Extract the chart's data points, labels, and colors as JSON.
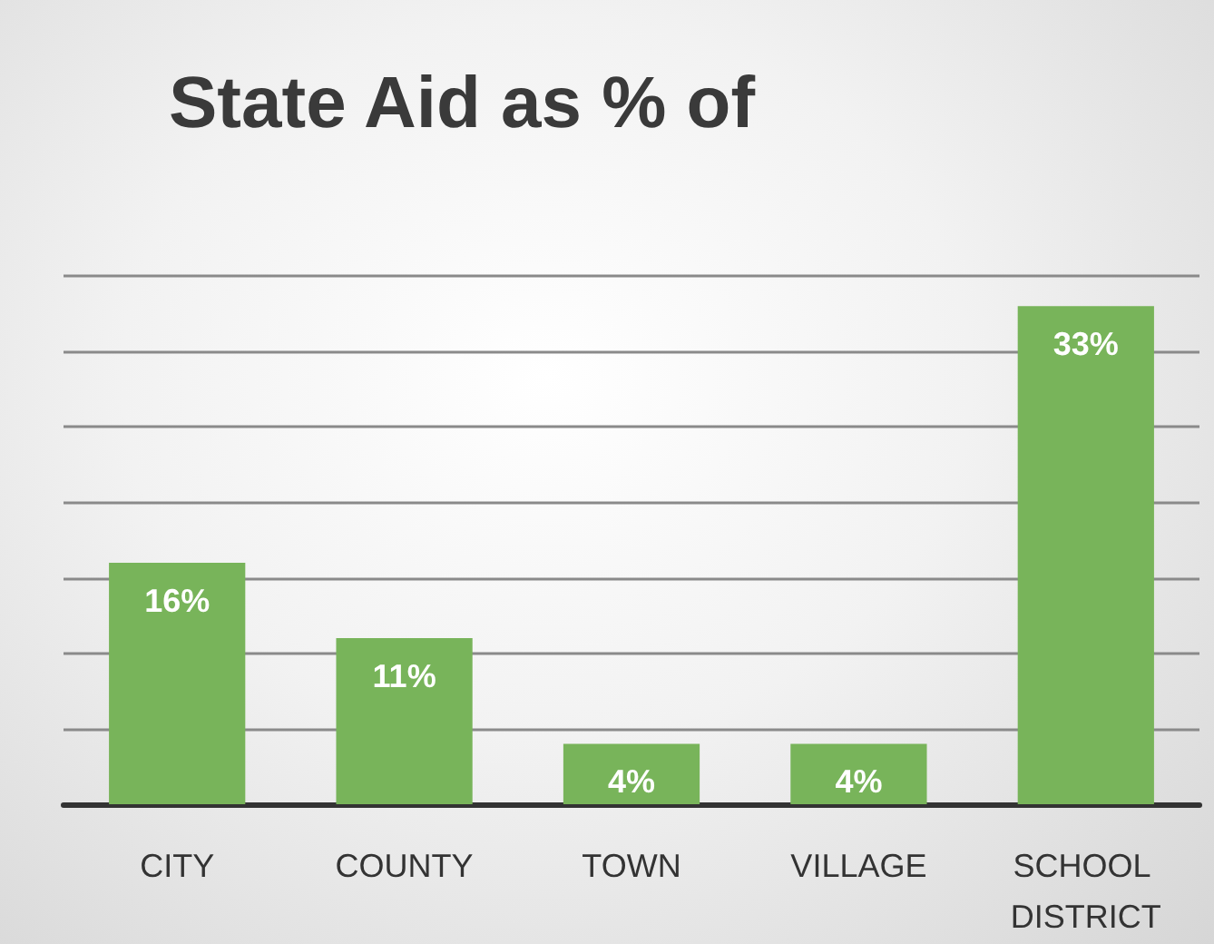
{
  "chart_data": {
    "type": "bar",
    "title": "State Aid as % of",
    "categories": [
      "CITY",
      "COUNTY",
      "TOWN",
      "VILLAGE",
      "SCHOOL DISTRICT"
    ],
    "values": [
      16,
      11,
      4,
      4,
      33
    ],
    "color": "#78b45a",
    "value_labels": [
      "16%",
      "11%",
      "4%",
      "4%",
      "33%"
    ],
    "grid": "y",
    "tick_labels": "x"
  }
}
